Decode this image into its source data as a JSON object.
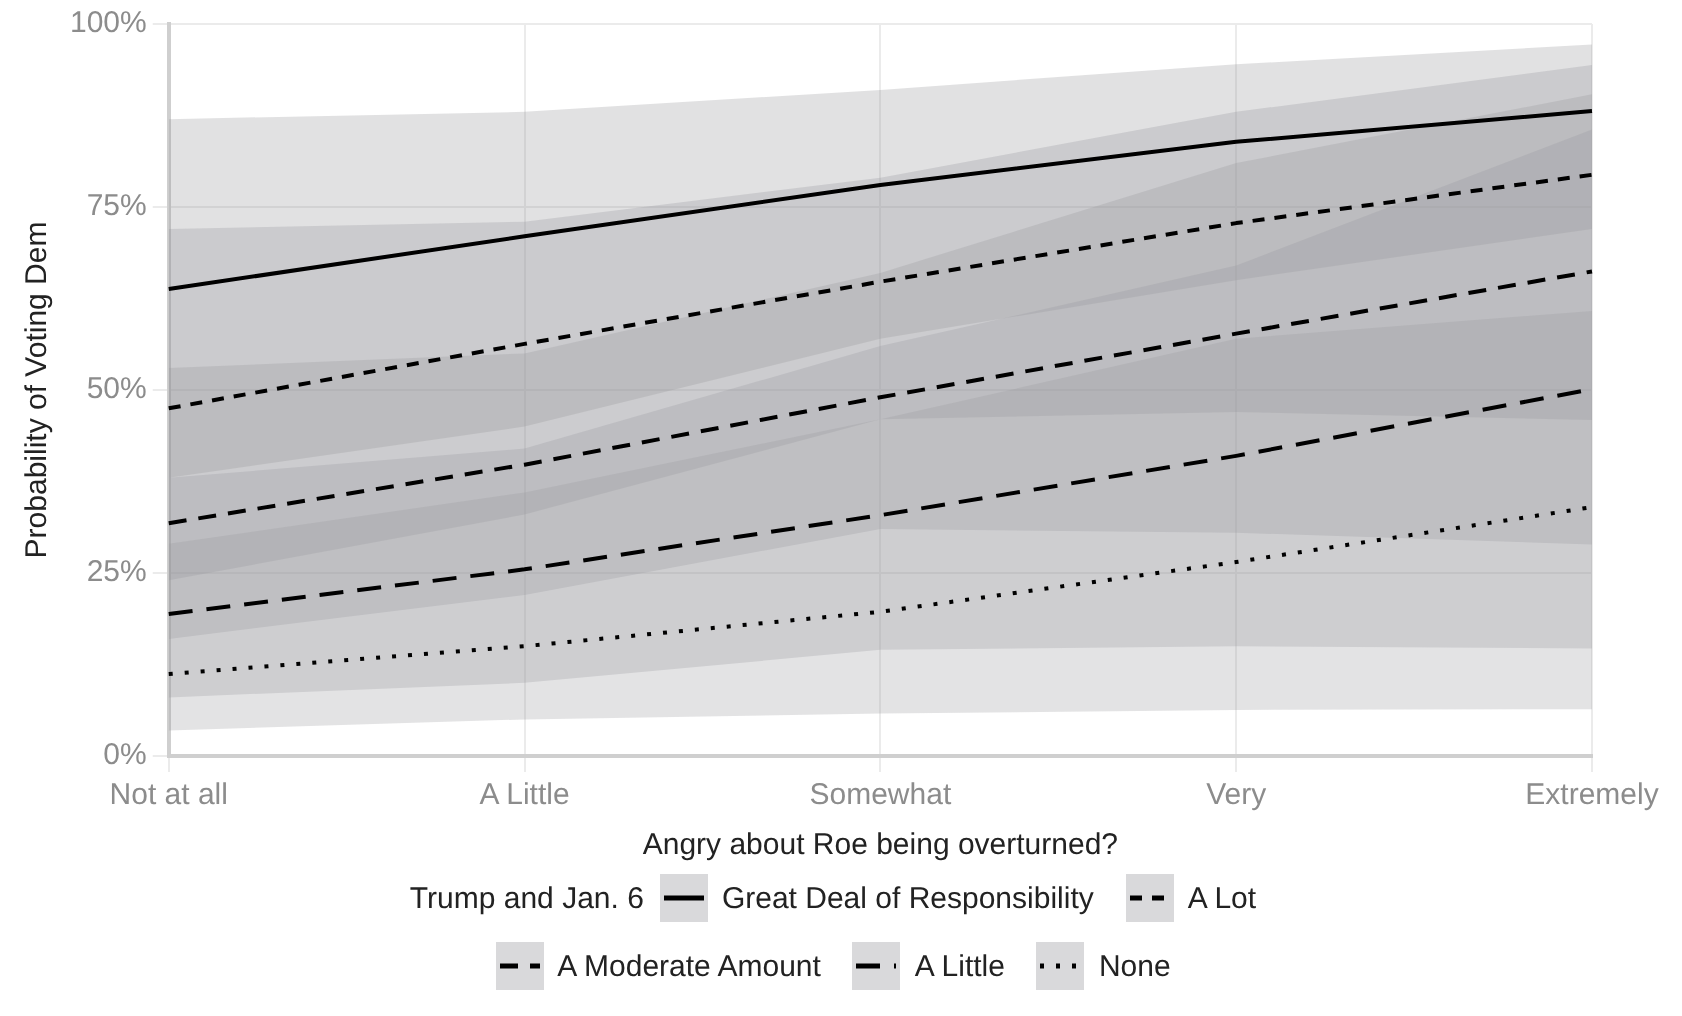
{
  "chart_data": {
    "type": "line",
    "xlabel": "Angry about Roe being overturned?",
    "ylabel": "Probability of Voting Dem",
    "categories": [
      "Not at all",
      "A Little",
      "Somewhat",
      "Very",
      "Extremely"
    ],
    "ylim": [
      0,
      100
    ],
    "yticks": [
      {
        "value": 0,
        "label": "0%"
      },
      {
        "value": 25,
        "label": "25%"
      },
      {
        "value": 50,
        "label": "50%"
      },
      {
        "value": 75,
        "label": "75%"
      },
      {
        "value": 100,
        "label": "100%"
      }
    ],
    "grid": true,
    "legend": "bottom",
    "legend_title": "Trump and Jan. 6",
    "marker": "none",
    "series": [
      {
        "name": "Great Deal of Responsibility",
        "color": "#000000",
        "line_style": "solid",
        "values": [
          63.8,
          71,
          78,
          83.9,
          88.1
        ],
        "lower": [
          38,
          45,
          57,
          65,
          72
        ],
        "upper": [
          87,
          88,
          91,
          94.5,
          97.2
        ]
      },
      {
        "name": "A Lot",
        "color": "#000000",
        "line_style": "dashed",
        "values": [
          47.5,
          56.3,
          64.8,
          72.8,
          79.4
        ],
        "lower": [
          24,
          33,
          46,
          47,
          45.9
        ],
        "upper": [
          72,
          73,
          79,
          88,
          94.4
        ]
      },
      {
        "name": "A Moderate Amount",
        "color": "#000000",
        "line_style": "dashed",
        "values": [
          31.8,
          39.8,
          49,
          57.7,
          66.2
        ],
        "lower": [
          16,
          22,
          31,
          30.5,
          28.9
        ],
        "upper": [
          53,
          55,
          66,
          81,
          90.4
        ]
      },
      {
        "name": "A Little",
        "color": "#000000",
        "line_style": "dashed",
        "values": [
          19.4,
          25.5,
          32.9,
          41,
          50.1
        ],
        "lower": [
          8,
          10,
          14.5,
          15,
          14.7
        ],
        "upper": [
          38,
          42,
          56,
          67,
          85.6
        ]
      },
      {
        "name": "None",
        "color": "#000000",
        "line_style": "dotted",
        "values": [
          11.2,
          15,
          19.7,
          26.5,
          34
        ],
        "lower": [
          3.5,
          5,
          5.8,
          6.3,
          6.4
        ],
        "upper": [
          29,
          36,
          46,
          57,
          60.8
        ]
      }
    ]
  }
}
